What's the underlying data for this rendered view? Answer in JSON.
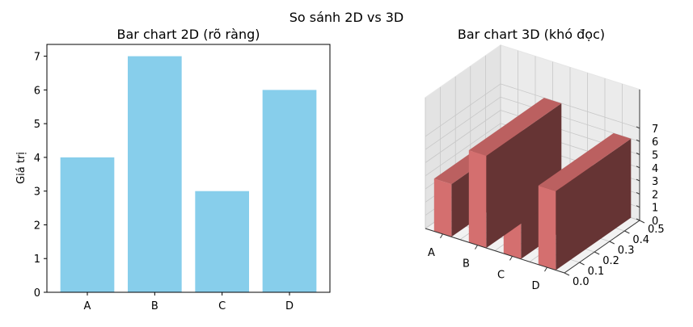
{
  "figure_title": "So sánh 2D vs 3D",
  "chart_data": [
    {
      "type": "bar",
      "title": "Bar chart 2D (rõ ràng)",
      "categories": [
        "A",
        "B",
        "C",
        "D"
      ],
      "values": [
        4,
        7,
        3,
        6
      ],
      "xlabel": "",
      "ylabel": "Giá trị",
      "ylim": [
        0,
        7.35
      ],
      "yticks": [
        0,
        1,
        2,
        3,
        4,
        5,
        6,
        7
      ],
      "grid": false,
      "color": "#87ceeb"
    },
    {
      "type": "bar",
      "projection": "3d",
      "title": "Bar chart 3D (khó đọc)",
      "categories": [
        "A",
        "B",
        "C",
        "D"
      ],
      "values": [
        4,
        7,
        3,
        6
      ],
      "zticks": [
        0,
        1,
        2,
        3,
        4,
        5,
        6,
        7
      ],
      "yticks": [
        "0.0",
        "0.1",
        "0.2",
        "0.3",
        "0.4",
        "0.5"
      ],
      "grid": true,
      "color": "#d9534f"
    }
  ]
}
